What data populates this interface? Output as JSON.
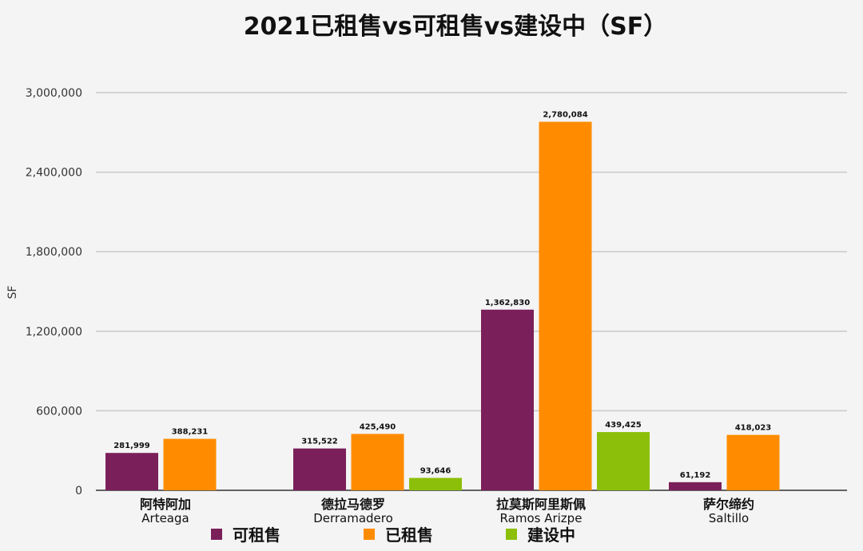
{
  "chart_data": {
    "type": "bar",
    "title": "2021已租售vs可租售vs建设中（SF）",
    "ylabel": "SF",
    "xlabel": "",
    "ylim": [
      0,
      3000000
    ],
    "yticks": [
      0,
      600000,
      1200000,
      1800000,
      2400000,
      3000000
    ],
    "ytick_labels": [
      "0",
      "600,000",
      "1,200,000",
      "1,800,000",
      "2,400,000",
      "3,000,000"
    ],
    "grid": true,
    "legend_position": "bottom",
    "categories": [
      {
        "cn": "阿特阿加",
        "en": "Arteaga"
      },
      {
        "cn": "德拉马德罗",
        "en": "Derramadero"
      },
      {
        "cn": "拉莫斯阿里斯佩",
        "en": "Ramos Arizpe"
      },
      {
        "cn": "萨尔缔约",
        "en": "Saltillo"
      }
    ],
    "series": [
      {
        "name": "可租售",
        "color": "#7b1f5a",
        "values": [
          281999,
          315522,
          1362830,
          61192
        ],
        "labels": [
          "281,999",
          "315,522",
          "1,362,830",
          "61,192"
        ]
      },
      {
        "name": "已租售",
        "color": "#ff8c00",
        "values": [
          388231,
          425490,
          2780084,
          418023
        ],
        "labels": [
          "388,231",
          "425,490",
          "2,780,084",
          "418,023"
        ]
      },
      {
        "name": "建设中",
        "color": "#8cbf0a",
        "values": [
          null,
          93646,
          439425,
          null
        ],
        "labels": [
          null,
          "93,646",
          "439,425",
          null
        ]
      }
    ]
  }
}
